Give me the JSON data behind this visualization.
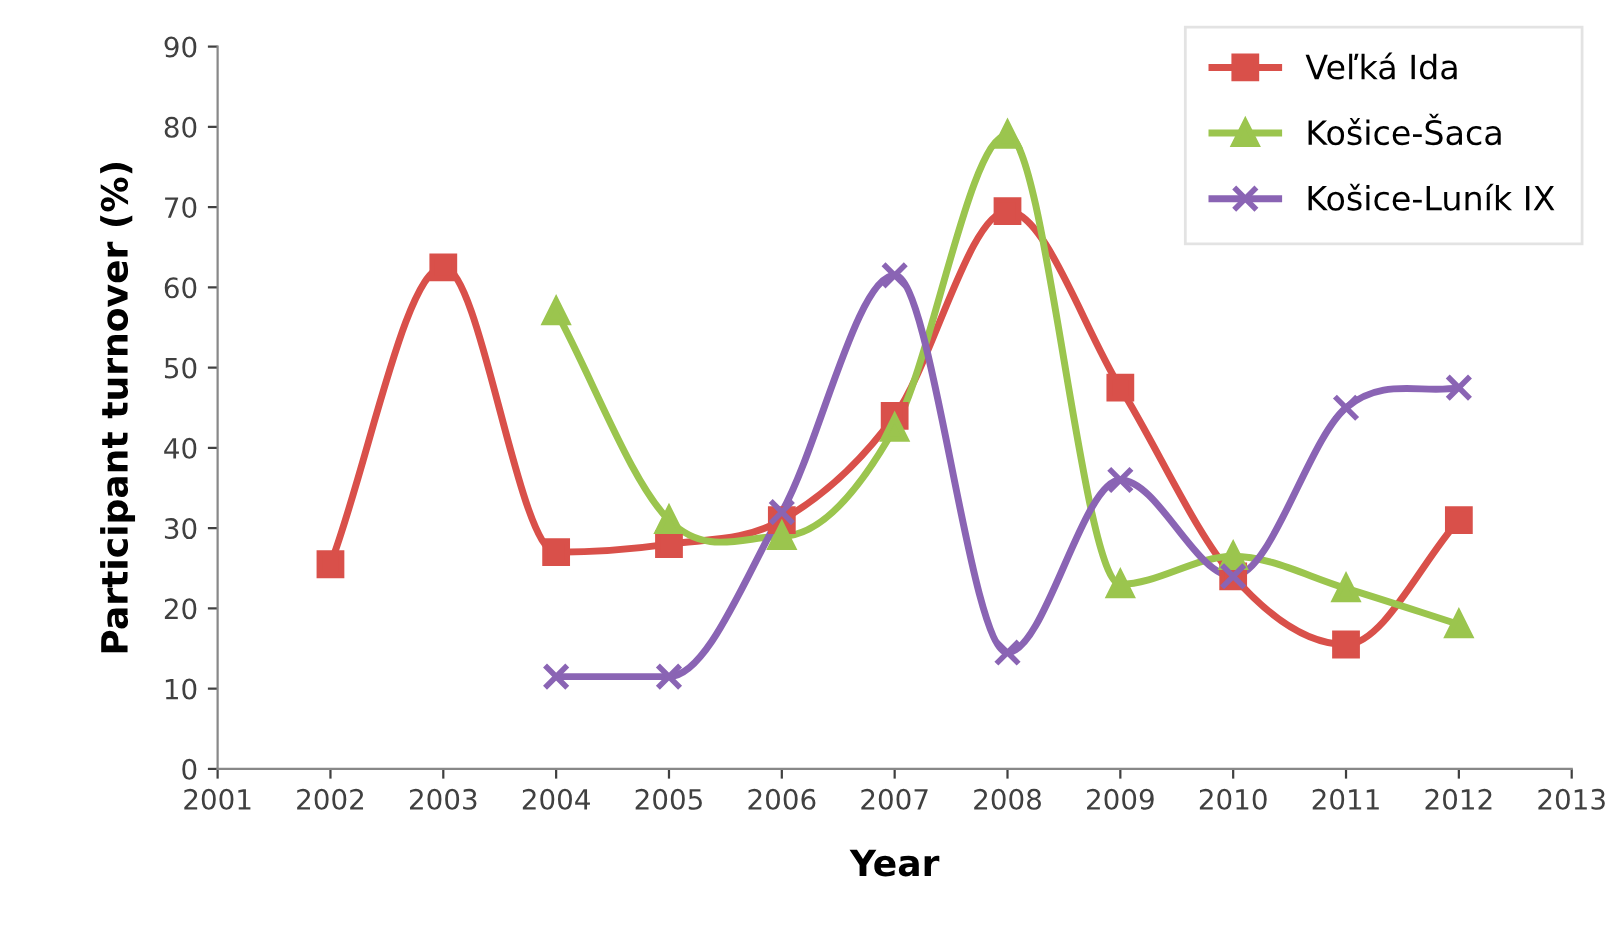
{
  "chart_data": {
    "type": "line",
    "xlabel": "Year",
    "ylabel": "Participant turnover (%)",
    "x": [
      2002,
      2003,
      2004,
      2005,
      2006,
      2007,
      2008,
      2009,
      2010,
      2011,
      2012
    ],
    "series": [
      {
        "name": "Veľká Ida",
        "color": "#d9504a",
        "marker": "square",
        "values": [
          25.5,
          62.5,
          27,
          28,
          31,
          44,
          69.5,
          47.5,
          24,
          15.5,
          31
        ]
      },
      {
        "name": "Košice-Šaca",
        "color": "#9bc54e",
        "marker": "triangle",
        "values": [
          null,
          null,
          57,
          31,
          29,
          42.5,
          79,
          23,
          26.5,
          22.5,
          18
        ]
      },
      {
        "name": "Košice-Luník IX",
        "color": "#8a64b4",
        "marker": "cross",
        "values": [
          null,
          null,
          11.5,
          11.5,
          32,
          61.5,
          14.5,
          36,
          24,
          45,
          47.5
        ]
      }
    ],
    "xlim": [
      2001,
      2013
    ],
    "xticks": [
      2001,
      2002,
      2003,
      2004,
      2005,
      2006,
      2007,
      2008,
      2009,
      2010,
      2011,
      2012,
      2013
    ],
    "ylim": [
      0,
      90
    ],
    "yticks": [
      0,
      10,
      20,
      30,
      40,
      50,
      60,
      70,
      80,
      90
    ],
    "grid": false,
    "legend": "top right",
    "line_style": "solid"
  }
}
